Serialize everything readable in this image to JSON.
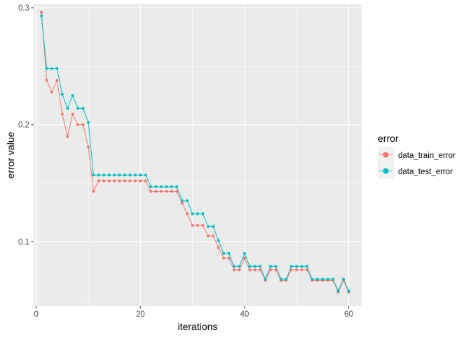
{
  "chart_data": {
    "type": "line",
    "xlabel": "iterations",
    "ylabel": "error value",
    "legend_title": "error",
    "legend_position": "right",
    "grid": true,
    "xlim": [
      -0.5,
      62.5
    ],
    "ylim": [
      0.045,
      0.303
    ],
    "xticks": [
      0,
      20,
      40,
      60
    ],
    "yticks": [
      0.1,
      0.2,
      0.3
    ],
    "xtick_labels": [
      "0",
      "20",
      "40",
      "60"
    ],
    "ytick_labels": [
      "0.1",
      "0.2",
      "0.3"
    ],
    "x": [
      1,
      2,
      3,
      4,
      5,
      6,
      7,
      8,
      9,
      10,
      11,
      12,
      13,
      14,
      15,
      16,
      17,
      18,
      19,
      20,
      21,
      22,
      23,
      24,
      25,
      26,
      27,
      28,
      29,
      30,
      31,
      32,
      33,
      34,
      35,
      36,
      37,
      38,
      39,
      40,
      41,
      42,
      43,
      44,
      45,
      46,
      47,
      48,
      49,
      50,
      51,
      52,
      53,
      54,
      55,
      56,
      57,
      58,
      59,
      60
    ],
    "series": [
      {
        "name": "data_train_error",
        "color": "#F8766D",
        "values": [
          0.296,
          0.238,
          0.228,
          0.238,
          0.209,
          0.19,
          0.209,
          0.2,
          0.2,
          0.181,
          0.143,
          0.152,
          0.152,
          0.152,
          0.152,
          0.152,
          0.152,
          0.152,
          0.152,
          0.152,
          0.152,
          0.143,
          0.143,
          0.143,
          0.143,
          0.143,
          0.143,
          0.133,
          0.124,
          0.114,
          0.114,
          0.114,
          0.105,
          0.105,
          0.095,
          0.086,
          0.086,
          0.076,
          0.076,
          0.086,
          0.076,
          0.076,
          0.076,
          0.067,
          0.076,
          0.076,
          0.067,
          0.067,
          0.076,
          0.076,
          0.076,
          0.076,
          0.067,
          0.067,
          0.067,
          0.067,
          0.067,
          0.057,
          0.067,
          0.057
        ]
      },
      {
        "name": "data_test_error",
        "color": "#00BFC4",
        "values": [
          0.293,
          0.248,
          0.248,
          0.248,
          0.226,
          0.214,
          0.225,
          0.214,
          0.214,
          0.202,
          0.157,
          0.157,
          0.157,
          0.157,
          0.157,
          0.157,
          0.157,
          0.157,
          0.157,
          0.157,
          0.157,
          0.147,
          0.147,
          0.147,
          0.147,
          0.147,
          0.147,
          0.135,
          0.135,
          0.124,
          0.124,
          0.124,
          0.113,
          0.113,
          0.101,
          0.09,
          0.09,
          0.079,
          0.079,
          0.09,
          0.079,
          0.079,
          0.079,
          0.068,
          0.079,
          0.079,
          0.068,
          0.068,
          0.079,
          0.079,
          0.079,
          0.079,
          0.068,
          0.068,
          0.068,
          0.068,
          0.068,
          0.058,
          0.068,
          0.058
        ]
      }
    ]
  },
  "colors": {
    "panel_background": "#EBEBEB",
    "grid_major": "#FFFFFF",
    "tick_text": "#4D4D4D"
  }
}
